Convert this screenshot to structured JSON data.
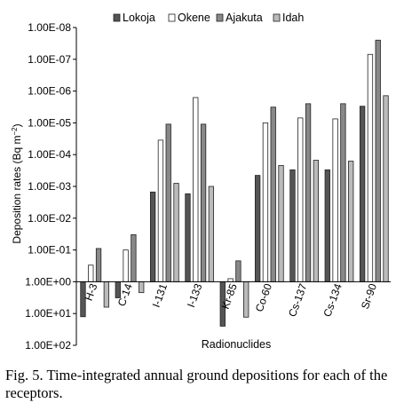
{
  "chart_data": {
    "type": "bar",
    "ylabel_main": "Deposition rates (Bq m",
    "ylabel_sup": "−2",
    "ylabel_close": ")",
    "xlabel": "Radionuclides",
    "y_scale": "log",
    "y_axis_direction": "inverted",
    "y_ticks": [
      "1.00E-08",
      "1.00E-07",
      "1.00E-06",
      "1.00E-05",
      "1.00E-04",
      "1.00E-03",
      "1.00E-02",
      "1.00E-01",
      "1.00E+00",
      "1.00E+01",
      "1.00E+02"
    ],
    "ylim": [
      100,
      1e-08
    ],
    "baseline": 1,
    "legend_position": "top",
    "categories": [
      "H-3",
      "C-14",
      "I-131",
      "I-133",
      "Kr-85",
      "Co-60",
      "Cs-137",
      "Cs-134",
      "Sr-90"
    ],
    "series": [
      {
        "name": "Lokoja",
        "color": "#555555",
        "values": [
          12.6,
          3.2,
          0.0015,
          0.0017,
          25,
          0.00045,
          0.0003,
          0.0003,
          3e-06
        ]
      },
      {
        "name": "Okene",
        "color": "#ffffff",
        "values": [
          0.3,
          0.1,
          3.5e-05,
          1.6e-06,
          0.8,
          1e-05,
          7e-06,
          7.5e-06,
          7e-08
        ]
      },
      {
        "name": "Ajakuta",
        "color": "#888888",
        "values": [
          0.09,
          0.033,
          1.1e-05,
          1.1e-05,
          0.22,
          3.2e-06,
          2.5e-06,
          2.5e-06,
          2.5e-08
        ]
      },
      {
        "name": "Idah",
        "color": "#bbbbbb",
        "values": [
          6.3,
          2.2,
          0.0008,
          0.001,
          13,
          0.00022,
          0.00015,
          0.00016,
          1.4e-06
        ]
      }
    ]
  },
  "caption": {
    "text": "Fig. 5. Time-integrated annual ground depositions for each of the receptors."
  }
}
